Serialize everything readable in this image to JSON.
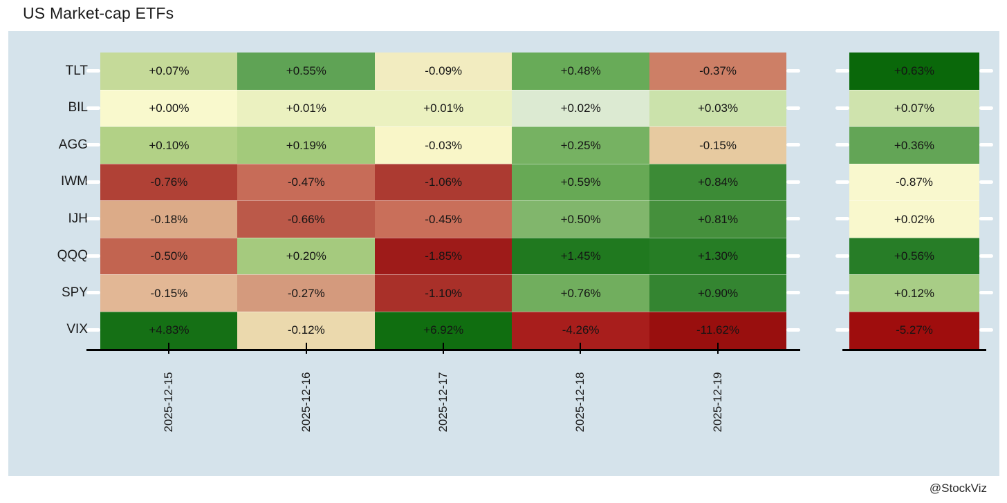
{
  "title": "US Market-cap ETFs",
  "watermark": "@StockViz",
  "colors": {
    "page_bg": "#ffffff",
    "panel_bg": "#d5e3eb",
    "axis_line": "#000000",
    "row_tick_dash": "#ffffff",
    "cell_text": "#141414",
    "label_text": "#1a1a1a"
  },
  "chart_data": {
    "type": "heatmap",
    "title": "US Market-cap ETFs",
    "columns": [
      "2025-12-15",
      "2025-12-16",
      "2025-12-17",
      "2025-12-18",
      "2025-12-19"
    ],
    "rows": [
      {
        "name": "TLT",
        "display": [
          "+0.07%",
          "+0.55%",
          "-0.09%",
          "+0.48%",
          "-0.37%"
        ],
        "values": [
          0.07,
          0.55,
          -0.09,
          0.48,
          -0.37
        ],
        "colors": [
          "#c5da99",
          "#5fa355",
          "#f2ecc0",
          "#68ab58",
          "#cd7f66"
        ],
        "summary": {
          "display": "+0.63%",
          "value": 0.63,
          "color": "#0a680a"
        }
      },
      {
        "name": "BIL",
        "display": [
          "+0.00%",
          "+0.01%",
          "+0.01%",
          "+0.02%",
          "+0.03%"
        ],
        "values": [
          0.0,
          0.01,
          0.01,
          0.02,
          0.03
        ],
        "colors": [
          "#f9f9cd",
          "#ebf1c0",
          "#ebf1c0",
          "#dcead2",
          "#cbe2ab"
        ],
        "summary": {
          "display": "+0.07%",
          "value": 0.07,
          "color": "#cfe3ad"
        }
      },
      {
        "name": "AGG",
        "display": [
          "+0.10%",
          "+0.19%",
          "-0.03%",
          "+0.25%",
          "-0.15%"
        ],
        "values": [
          0.1,
          0.19,
          -0.03,
          0.25,
          -0.15
        ],
        "colors": [
          "#b2d186",
          "#a3ca7b",
          "#f9f6c8",
          "#76b262",
          "#e7caa0"
        ],
        "summary": {
          "display": "+0.36%",
          "value": 0.36,
          "color": "#63a556"
        }
      },
      {
        "name": "IWM",
        "display": [
          "-0.76%",
          "-0.47%",
          "-1.06%",
          "+0.59%",
          "+0.84%"
        ],
        "values": [
          -0.76,
          -0.47,
          -1.06,
          0.59,
          0.84
        ],
        "colors": [
          "#b04136",
          "#c76c58",
          "#ac3a31",
          "#67a955",
          "#3c8b36"
        ],
        "summary": {
          "display": "-0.87%",
          "value": -0.87,
          "color": "#f9f8ce"
        }
      },
      {
        "name": "IJH",
        "display": [
          "-0.18%",
          "-0.66%",
          "-0.45%",
          "+0.50%",
          "+0.81%"
        ],
        "values": [
          -0.18,
          -0.66,
          -0.45,
          0.5,
          0.81
        ],
        "colors": [
          "#dcab88",
          "#bb5949",
          "#c96f5a",
          "#81b66c",
          "#45903c"
        ],
        "summary": {
          "display": "+0.02%",
          "value": 0.02,
          "color": "#f9f8cd"
        }
      },
      {
        "name": "QQQ",
        "display": [
          "-0.50%",
          "+0.20%",
          "-1.85%",
          "+1.45%",
          "+1.30%"
        ],
        "values": [
          -0.5,
          0.2,
          -1.85,
          1.45,
          1.3
        ],
        "colors": [
          "#c26450",
          "#a5ca7e",
          "#9e1b19",
          "#20791f",
          "#267d25"
        ],
        "summary": {
          "display": "+0.56%",
          "value": 0.56,
          "color": "#277d27"
        }
      },
      {
        "name": "SPY",
        "display": [
          "-0.15%",
          "-0.27%",
          "-1.10%",
          "+0.76%",
          "+0.90%"
        ],
        "values": [
          -0.15,
          -0.27,
          -1.1,
          0.76,
          0.9
        ],
        "colors": [
          "#e2b795",
          "#d49a7d",
          "#a93029",
          "#71ae5e",
          "#348531"
        ],
        "summary": {
          "display": "+0.12%",
          "value": 0.12,
          "color": "#a8cd86"
        }
      },
      {
        "name": "VIX",
        "display": [
          "+4.83%",
          "-0.12%",
          "+6.92%",
          "-4.26%",
          "-11.62%"
        ],
        "values": [
          4.83,
          -0.12,
          6.92,
          -4.26,
          -11.62
        ],
        "colors": [
          "#157015",
          "#ebd9ad",
          "#106e10",
          "#a81e1c",
          "#990f0e"
        ],
        "summary": {
          "display": "-5.27%",
          "value": -5.27,
          "color": "#9f0d0d"
        }
      }
    ],
    "layout_hints": {
      "x_tick_label_rotation": -90,
      "summary_panel_right": true,
      "grid": false,
      "legend": false,
      "cell_value_labels": true
    }
  }
}
